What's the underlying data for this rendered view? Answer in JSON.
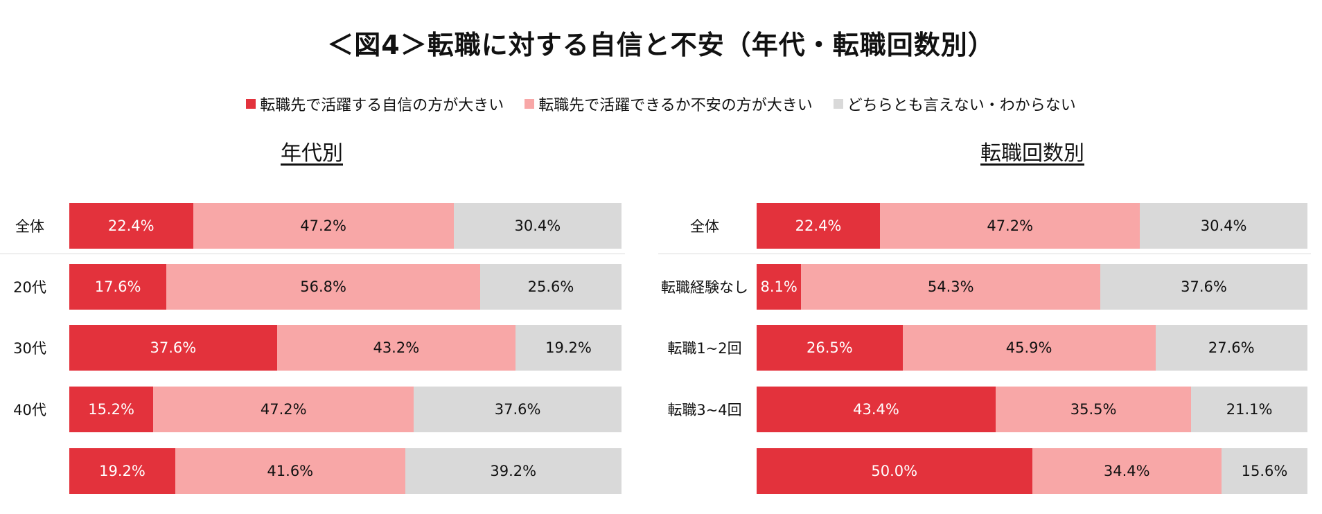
{
  "title": "＜図4＞転職に対する自信と不安（年代・転職回数別）",
  "colors": {
    "confident": "#e3323c",
    "anxious": "#f8a7a7",
    "neutral": "#d9d9d9"
  },
  "legend": [
    {
      "label": "転職先で活躍する自信の方が大きい",
      "color": "#e3323c"
    },
    {
      "label": "転職先で活躍できるか不安の方が大きい",
      "color": "#f8a7a7"
    },
    {
      "label": "どちらとも言えない・わからない",
      "color": "#d9d9d9"
    }
  ],
  "chart_data": [
    {
      "type": "bar",
      "stacked": true,
      "orientation": "horizontal",
      "title": "年代別",
      "categories": [
        "全体",
        "20代",
        "30代",
        "40代",
        ""
      ],
      "series": [
        {
          "name": "転職先で活躍する自信の方が大きい",
          "values": [
            22.4,
            17.6,
            37.6,
            15.2,
            19.2
          ]
        },
        {
          "name": "転職先で活躍できるか不安の方が大きい",
          "values": [
            47.2,
            56.8,
            43.2,
            47.2,
            41.6
          ]
        },
        {
          "name": "どちらとも言えない・わからない",
          "values": [
            30.4,
            25.6,
            19.2,
            37.6,
            39.2
          ]
        }
      ],
      "unit": "%",
      "xlim": [
        0,
        100
      ]
    },
    {
      "type": "bar",
      "stacked": true,
      "orientation": "horizontal",
      "title": "転職回数別",
      "categories": [
        "全体",
        "転職経験なし",
        "転職1~2回",
        "転職3~4回",
        ""
      ],
      "series": [
        {
          "name": "転職先で活躍する自信の方が大きい",
          "values": [
            22.4,
            8.1,
            26.5,
            43.4,
            50.0
          ]
        },
        {
          "name": "転職先で活躍できるか不安の方が大きい",
          "values": [
            47.2,
            54.3,
            45.9,
            35.5,
            34.4
          ]
        },
        {
          "name": "どちらとも言えない・わからない",
          "values": [
            30.4,
            37.6,
            27.6,
            21.1,
            15.6
          ]
        }
      ],
      "unit": "%",
      "xlim": [
        0,
        100
      ]
    }
  ]
}
